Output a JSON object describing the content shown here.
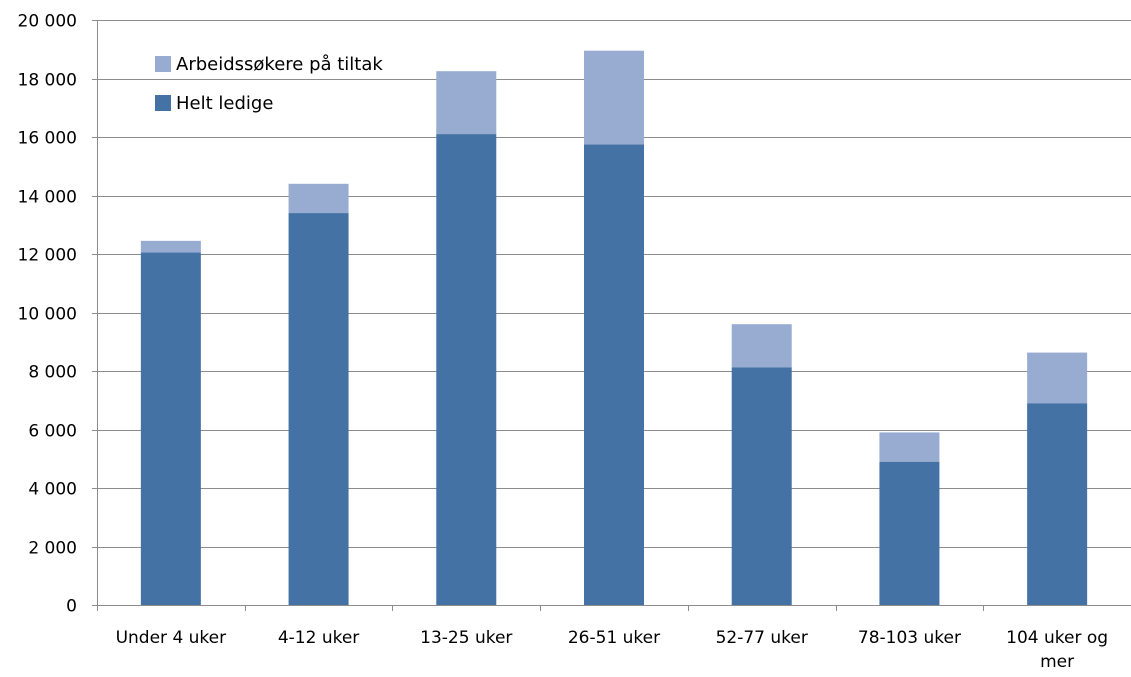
{
  "chart_data": {
    "type": "bar",
    "stacked": true,
    "categories": [
      [
        "Under 4 uker"
      ],
      [
        "4-12 uker"
      ],
      [
        "13-25 uker"
      ],
      [
        "26-51 uker"
      ],
      [
        "52-77 uker"
      ],
      [
        "78-103 uker"
      ],
      [
        "104 uker og",
        "mer"
      ]
    ],
    "series": [
      {
        "name": "Helt ledige",
        "color": "#4472a4",
        "values": [
          12050,
          13400,
          16100,
          15750,
          8120,
          4900,
          6900
        ]
      },
      {
        "name": "Arbeidssøkere på tiltak",
        "color": "#98abd1",
        "values": [
          400,
          1000,
          2150,
          3200,
          1480,
          1000,
          1730
        ]
      }
    ],
    "ylim": [
      0,
      20000
    ],
    "yticks": [
      0,
      2000,
      4000,
      6000,
      8000,
      10000,
      12000,
      14000,
      16000,
      18000,
      20000
    ],
    "ytick_labels": [
      "0",
      "2 000",
      "4 000",
      "6 000",
      "8 000",
      "10 000",
      "12 000",
      "14 000",
      "16 000",
      "18 000",
      "20 000"
    ],
    "grid": true,
    "legend": {
      "placement": "top-left",
      "entries": [
        "Arbeidssøkere på tiltak",
        "Helt ledige"
      ]
    },
    "title": "",
    "xlabel": "",
    "ylabel": ""
  }
}
